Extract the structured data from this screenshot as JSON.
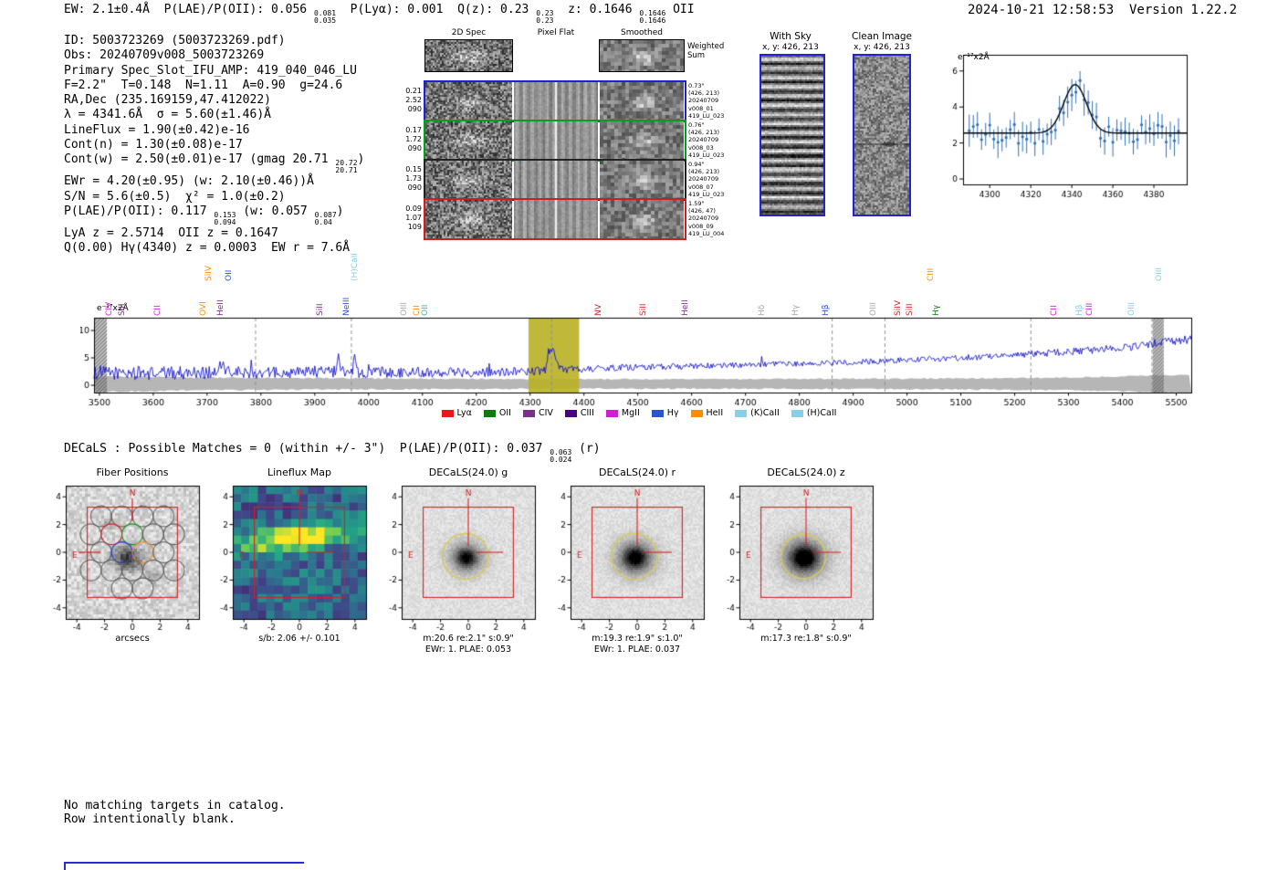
{
  "meta": {
    "timestamp_line": "2024-10-21 12:58:53  Version 1.22.2"
  },
  "top_line": {
    "segments": [
      {
        "t": "EW: 2.1±0.4Å  P(LAE)/P(OII): 0.056 "
      },
      {
        "frac": [
          "0.081",
          "0.035"
        ]
      },
      {
        "t": "  P(Lyα): 0.001  Q(z): 0.23 "
      },
      {
        "frac": [
          "0.23",
          "0.23"
        ]
      },
      {
        "t": "  z: 0.1646 "
      },
      {
        "frac": [
          "0.1646",
          "0.1646"
        ]
      },
      {
        "t": " OII"
      }
    ]
  },
  "info_block": {
    "lines": [
      [
        {
          "t": "ID: 5003723269 (5003723269.pdf)"
        }
      ],
      [
        {
          "t": "Obs: 20240709v008_5003723269"
        }
      ],
      [
        {
          "t": "Primary Spec_Slot_IFU_AMP: 419_040_046_LU"
        }
      ],
      [
        {
          "t": "F=2.2\"  T=0.148  N=1.11  A=0.90  g=24.6"
        }
      ],
      [
        {
          "t": "RA,Dec (235.169159,47.412022)"
        }
      ],
      [
        {
          "t": "λ = 4341.6Å  σ = 5.60(±1.46)Å"
        }
      ],
      [
        {
          "t": "LineFlux = 1.90(±0.42)e-16"
        }
      ],
      [
        {
          "t": "Cont(n) = 1.30(±0.08)e-17"
        }
      ],
      [
        {
          "t": "Cont(w) = 2.50(±0.01)e-17 (gmag 20.71 "
        },
        {
          "frac": [
            "20.72",
            "20.71"
          ]
        },
        {
          "t": ")"
        }
      ],
      [
        {
          "t": "EWr = 4.20(±0.95) (w: 2.10(±0.46))Å"
        }
      ],
      [
        {
          "t": "S/N = 5.6(±0.5)  χ² = 1.0(±0.2)"
        }
      ],
      [
        {
          "t": "P(LAE)/P(OII): 0.117 "
        },
        {
          "frac": [
            "0.153",
            "0.094"
          ]
        },
        {
          "t": " (w: 0.057 "
        },
        {
          "frac": [
            "0.087",
            "0.04"
          ]
        },
        {
          "t": ")"
        }
      ],
      [
        {
          "t": "LyA z = 2.5714  OII z = 0.1647"
        }
      ],
      [
        {
          "t": "Q(0.00) Hγ(4340) z = 0.0003  EW r = 7.6Å"
        }
      ]
    ]
  },
  "spec2d": {
    "col_headers": [
      "2D Spec",
      "Pixel Flat",
      "Smoothed"
    ],
    "weighted_label": "Weighted\nSum",
    "rows": [
      {
        "left": "0.21\n2.52\n090",
        "right": "0.73\"\n(426, 213)\n20240709\nv008_01\n419_LU_023",
        "border": "#2020cc"
      },
      {
        "left": "0.17\n1.72\n090",
        "right": "0.76\"\n(426, 213)\n20240709\nv008_03\n419_LU_023",
        "border": "#00a018"
      },
      {
        "left": "0.15\n1.73\n090",
        "right": "0.94\"\n(426, 213)\n20240709\nv008_07\n419_LU_023",
        "border": "#222222"
      },
      {
        "left": "0.09\n1.07\n109",
        "right": "1.59\"\n(426, 47)\n20240709\nv008_09\n419_LU_004",
        "border": "#cc2020"
      }
    ]
  },
  "with_sky": {
    "title": "With Sky",
    "coords": "x, y: 426, 213"
  },
  "clean_image": {
    "title": "Clean Image",
    "coords": "x, y: 426, 213"
  },
  "chart_data": [
    {
      "id": "emission-line-fit",
      "type": "scatter",
      "annotation": "e⁻¹⁷x2Å",
      "xlim": [
        4287,
        4396
      ],
      "ylim": [
        -0.3,
        6.9
      ],
      "xticks": [
        4300,
        4320,
        4340,
        4360,
        4380
      ],
      "yticks": [
        0,
        2,
        4,
        6
      ],
      "point_spacing": 2,
      "point_color": "#3070b3",
      "fit_color": "#000000",
      "gaussian_fit": {
        "center": 4341.6,
        "sigma": 5.6,
        "amplitude": 2.7,
        "baseline": 2.55
      }
    },
    {
      "id": "full-spectrum",
      "type": "line",
      "annotation": "e⁻¹⁷x2Å",
      "xlim": [
        3490,
        5528
      ],
      "ylim": [
        -1.33,
        12.33
      ],
      "xticks": [
        3500,
        3600,
        3700,
        3800,
        3900,
        4000,
        4100,
        4200,
        4300,
        4400,
        4500,
        4600,
        4700,
        4800,
        4900,
        5000,
        5100,
        5200,
        5300,
        5400,
        5500
      ],
      "yticks": [
        0,
        5,
        10
      ],
      "line_color": "#1414cc",
      "highlight_band": {
        "range": [
          4297,
          4391
        ],
        "color": "#b9b022"
      },
      "edge_hatch_bands": [
        [
          3490,
          3514
        ],
        [
          5456,
          5477
        ]
      ],
      "dashed_lines": [
        3790,
        3968,
        4340,
        4861,
        4959,
        5230,
        5455
      ],
      "continuum_anchors": [
        [
          3490,
          2.3
        ],
        [
          3600,
          2.2
        ],
        [
          3700,
          2.4
        ],
        [
          3800,
          2.3
        ],
        [
          3900,
          2.5
        ],
        [
          4000,
          2.4
        ],
        [
          4100,
          2.45
        ],
        [
          4200,
          2.4
        ],
        [
          4300,
          2.6
        ],
        [
          4400,
          3.0
        ],
        [
          4500,
          3.3
        ],
        [
          4600,
          3.5
        ],
        [
          4700,
          3.7
        ],
        [
          4800,
          3.9
        ],
        [
          4900,
          4.2
        ],
        [
          5000,
          4.6
        ],
        [
          5100,
          5.0
        ],
        [
          5200,
          5.5
        ],
        [
          5300,
          6.1
        ],
        [
          5400,
          6.8
        ],
        [
          5528,
          8.5
        ]
      ],
      "gaussians": [
        {
          "center": 4341.6,
          "amp": 4.3,
          "sigma": 5.6
        },
        {
          "center": 3944,
          "amp": 4.2,
          "sigma": 2.2
        },
        {
          "center": 3974,
          "amp": 3.2,
          "sigma": 2.0
        },
        {
          "center": 3727,
          "amp": 1.8,
          "sigma": 2.5
        }
      ],
      "noise_amp_anchors": [
        [
          3490,
          1.3
        ],
        [
          3800,
          1.1
        ],
        [
          4100,
          1.0
        ],
        [
          4300,
          0.8
        ],
        [
          4500,
          0.55
        ],
        [
          4800,
          0.5
        ],
        [
          5100,
          0.55
        ],
        [
          5400,
          0.7
        ],
        [
          5528,
          0.9
        ]
      ],
      "error_band_anchors": [
        [
          3490,
          1.7
        ],
        [
          3700,
          1.4
        ],
        [
          4000,
          1.25
        ],
        [
          4300,
          1.15
        ],
        [
          4600,
          1.1
        ],
        [
          5000,
          1.2
        ],
        [
          5300,
          1.4
        ],
        [
          5528,
          1.9
        ]
      ],
      "labels": [
        {
          "wl": 3520,
          "label": "CIV",
          "color": "#cf1fcf",
          "tier": 1
        },
        {
          "wl": 3544,
          "label": "SiII",
          "color": "#7d2e8d",
          "tier": 1
        },
        {
          "wl": 3610,
          "label": "CII",
          "color": "#cf1fcf",
          "tier": 1
        },
        {
          "wl": 3696,
          "label": "OVI",
          "color": "#ff8c00",
          "tier": 1
        },
        {
          "wl": 3706,
          "label": "SiIV",
          "color": "#ff8c00",
          "tier": 2
        },
        {
          "wl": 3727,
          "label": "HeII",
          "color": "#7d2e8d",
          "tier": 1
        },
        {
          "wl": 3742,
          "label": "OII",
          "color": "#2955c8",
          "tier": 2
        },
        {
          "wl": 3912,
          "label": "SiII",
          "color": "#7d2e8d",
          "tier": 1
        },
        {
          "wl": 3962,
          "label": "NeIII",
          "color": "#2955c8",
          "tier": 1
        },
        {
          "wl": 3976,
          "label": "(H)CaII",
          "color": "#87ceeb",
          "tier": 2
        },
        {
          "wl": 4069,
          "label": "OIII",
          "color": "#a8a8a8",
          "tier": 1
        },
        {
          "wl": 4092,
          "label": "CII",
          "color": "#ff8c00",
          "tier": 1
        },
        {
          "wl": 4107,
          "label": "OII",
          "color": "#4aacac",
          "tier": 1
        },
        {
          "wl": 4429,
          "label": "NV",
          "color": "#d62728",
          "tier": 1
        },
        {
          "wl": 4512,
          "label": "SiII",
          "color": "#d62728",
          "tier": 1
        },
        {
          "wl": 4590,
          "label": "HeII",
          "color": "#7d2e8d",
          "tier": 1
        },
        {
          "wl": 4733,
          "label": "Hδ",
          "color": "#a8a8a8",
          "tier": 1
        },
        {
          "wl": 4795,
          "label": "Hγ",
          "color": "#a8a8a8",
          "tier": 1
        },
        {
          "wl": 4852,
          "label": "Hβ",
          "color": "#2955c8",
          "tier": 1
        },
        {
          "wl": 4940,
          "label": "OIII",
          "color": "#a8a8a8",
          "tier": 1
        },
        {
          "wl": 4985,
          "label": "SiIV",
          "color": "#d62728",
          "tier": 1
        },
        {
          "wl": 5007,
          "label": "SiII",
          "color": "#d62728",
          "tier": 1
        },
        {
          "wl": 5046,
          "label": "CIII",
          "color": "#ff8c00",
          "tier": 2
        },
        {
          "wl": 5056,
          "label": "Hγ",
          "color": "#0f7a0f",
          "tier": 1
        },
        {
          "wl": 5275,
          "label": "CII",
          "color": "#cf1fcf",
          "tier": 1
        },
        {
          "wl": 5322,
          "label": "Hβ",
          "color": "#87ceeb",
          "tier": 1
        },
        {
          "wl": 5342,
          "label": "CIII",
          "color": "#cf1fcf",
          "tier": 1
        },
        {
          "wl": 5420,
          "label": "OIII",
          "color": "#87ceeb",
          "tier": 1
        },
        {
          "wl": 5470,
          "label": "OIII",
          "color": "#87ceeb",
          "tier": 2
        }
      ],
      "legend": [
        {
          "label": "Lyα",
          "color": "#e41a1c"
        },
        {
          "label": "OII",
          "color": "#0f7a0f"
        },
        {
          "label": "CIV",
          "color": "#7d2e8d"
        },
        {
          "label": "CIII",
          "color": "#4b0082"
        },
        {
          "label": "MgII",
          "color": "#cf1fcf"
        },
        {
          "label": "Hγ",
          "color": "#2955c8"
        },
        {
          "label": "HeII",
          "color": "#ff8c00"
        },
        {
          "label": "(K)CaII",
          "color": "#87ceeb"
        },
        {
          "label": "(H)CaII",
          "color": "#87ceeb"
        }
      ]
    }
  ],
  "decals_line": {
    "segments": [
      {
        "t": "DECaLS : Possible Matches = 0 (within +/- 3\")  P(LAE)/P(OII): 0.037 "
      },
      {
        "frac": [
          "0.063",
          "0.024"
        ]
      },
      {
        "t": " (r)"
      }
    ]
  },
  "cutouts": {
    "ticks": [
      -4,
      -2,
      0,
      2,
      4
    ],
    "panels": [
      {
        "title": "Fiber Positions",
        "xlabel": "arcsecs"
      },
      {
        "title": "Lineflux Map",
        "caption1": "s/b: 2.06 +/- 0.101"
      },
      {
        "title": "DECaLS(24.0) g",
        "caption1": "m:20.6 re:2.1\" s:0.9\"",
        "caption2": "EWr: 1. PLAE: 0.053"
      },
      {
        "title": "DECaLS(24.0) r",
        "caption1": "m:19.3 re:1.9\" s:1.0\"",
        "caption2": "EWr: 1. PLAE: 0.037"
      },
      {
        "title": "DECaLS(24.0) z",
        "caption1": "m:17.3 re:1.8\" s:0.9\""
      }
    ]
  },
  "footer": {
    "lines": [
      "No matching targets in catalog.",
      "Row intentionally blank."
    ]
  }
}
